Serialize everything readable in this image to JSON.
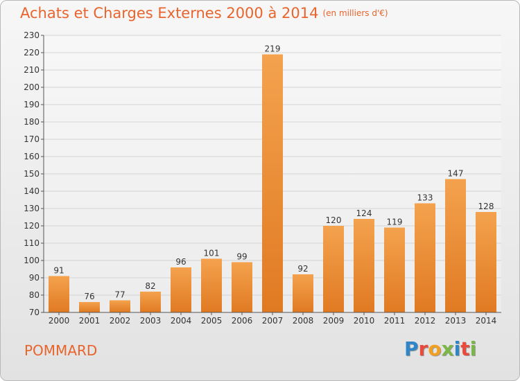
{
  "header": {
    "title": "Achats et Charges Externes 2000 à 2014",
    "subtitle": "(en milliers d'€)"
  },
  "footer": {
    "commune": "POMMARD",
    "logo_text": "Proxiti"
  },
  "colors": {
    "accent": "#e8642c",
    "bar_light": "#f4a24e",
    "bar_dark": "#e07a22"
  },
  "chart_data": {
    "type": "bar",
    "title": "Achats et Charges Externes 2000 à 2014",
    "subtitle": "(en milliers d'€)",
    "categories": [
      "2000",
      "2001",
      "2002",
      "2003",
      "2004",
      "2005",
      "2006",
      "2007",
      "2008",
      "2009",
      "2010",
      "2011",
      "2012",
      "2013",
      "2014"
    ],
    "values": [
      91,
      76,
      77,
      82,
      96,
      101,
      99,
      219,
      92,
      120,
      124,
      119,
      133,
      147,
      128
    ],
    "ylim": [
      70,
      230
    ],
    "ytick_step": 10,
    "grid": true,
    "data_labels": true
  }
}
